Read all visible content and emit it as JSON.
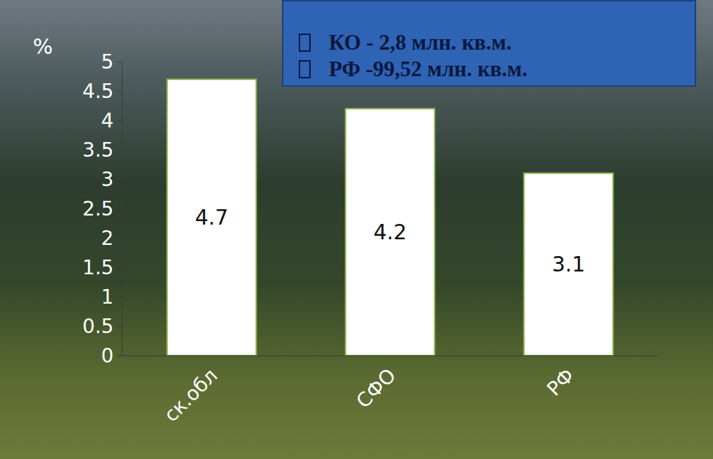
{
  "chart_data": {
    "type": "bar",
    "y_label": "%",
    "categories": [
      "ск.обл",
      "СФО",
      "РФ"
    ],
    "values": [
      4.7,
      4.2,
      3.1
    ],
    "color": "#ffffff",
    "ylim": [
      0,
      5
    ],
    "yticks": [
      0,
      0.5,
      1,
      1.5,
      2,
      2.5,
      3,
      3.5,
      4,
      4.5,
      5
    ],
    "grid": false,
    "data_labels": true,
    "info_box": [
      "КО - 2,8 млн. кв.м.",
      "РФ -99,52 млн. кв.м."
    ]
  }
}
